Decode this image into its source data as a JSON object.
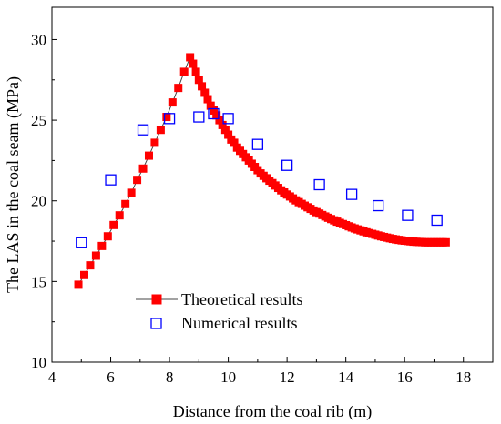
{
  "chart_data": {
    "type": "scatter",
    "title": "",
    "xlabel": "Distance from the coal rib (m)",
    "ylabel": "The LAS in the coal seam (MPa)",
    "xlim": [
      4,
      19
    ],
    "ylim": [
      10,
      32
    ],
    "xticks": [
      4,
      6,
      8,
      10,
      12,
      14,
      16,
      18
    ],
    "yticks": [
      10,
      15,
      20,
      25,
      30
    ],
    "grid": false,
    "legend_position": "bottom-left",
    "series": [
      {
        "name": "Theoretical results",
        "kind": "line-with-square-markers",
        "color": "#ff0000",
        "line_color": "#444444",
        "x": [
          4.9,
          5.1,
          5.3,
          5.5,
          5.7,
          5.9,
          6.1,
          6.3,
          6.5,
          6.7,
          6.9,
          7.1,
          7.3,
          7.5,
          7.7,
          7.9,
          8.1,
          8.3,
          8.5,
          8.7,
          8.8,
          8.9,
          9.0,
          9.1,
          9.2,
          9.3,
          9.4,
          9.5,
          9.6,
          9.7,
          9.8,
          9.9,
          10.0,
          10.1,
          10.2,
          10.3,
          10.4,
          10.5,
          10.6,
          10.7,
          10.8,
          10.9,
          11.0,
          11.1,
          11.2,
          11.3,
          11.4,
          11.5,
          11.6,
          11.7,
          11.8,
          11.9,
          12.0,
          12.1,
          12.2,
          12.3,
          12.4,
          12.5,
          12.6,
          12.7,
          12.8,
          12.9,
          13.0,
          13.1,
          13.2,
          13.3,
          13.4,
          13.5,
          13.6,
          13.7,
          13.8,
          13.9,
          14.0,
          14.1,
          14.2,
          14.3,
          14.4,
          14.5,
          14.6,
          14.7,
          14.8,
          14.9,
          15.0,
          15.1,
          15.2,
          15.3,
          15.4,
          15.5,
          15.6,
          15.7,
          15.8,
          15.9,
          16.0,
          16.1,
          16.2,
          16.3,
          16.4,
          16.5,
          16.6,
          16.7,
          16.8,
          16.9,
          17.0,
          17.1,
          17.2,
          17.3,
          17.4
        ],
        "y": [
          14.8,
          15.4,
          16.0,
          16.6,
          17.2,
          17.8,
          18.5,
          19.1,
          19.8,
          20.5,
          21.3,
          22.0,
          22.8,
          23.6,
          24.4,
          25.2,
          26.1,
          27.0,
          28.0,
          28.9,
          28.5,
          28.0,
          27.5,
          27.1,
          26.7,
          26.3,
          25.9,
          25.6,
          25.3,
          25.0,
          24.7,
          24.4,
          24.1,
          23.8,
          23.6,
          23.3,
          23.1,
          22.9,
          22.7,
          22.5,
          22.3,
          22.1,
          21.9,
          21.7,
          21.55,
          21.4,
          21.25,
          21.1,
          20.95,
          20.8,
          20.65,
          20.52,
          20.39,
          20.27,
          20.15,
          20.03,
          19.92,
          19.81,
          19.7,
          19.6,
          19.5,
          19.4,
          19.3,
          19.21,
          19.12,
          19.03,
          18.95,
          18.87,
          18.79,
          18.71,
          18.63,
          18.56,
          18.49,
          18.42,
          18.35,
          18.29,
          18.23,
          18.17,
          18.11,
          18.05,
          18.0,
          17.95,
          17.9,
          17.85,
          17.8,
          17.76,
          17.72,
          17.68,
          17.64,
          17.61,
          17.58,
          17.55,
          17.53,
          17.51,
          17.49,
          17.47,
          17.46,
          17.45,
          17.44,
          17.43,
          17.43,
          17.43,
          17.43,
          17.43,
          17.43,
          17.43,
          17.43
        ]
      },
      {
        "name": "Numerical results",
        "kind": "hollow-square-markers",
        "color": "#0000ff",
        "x": [
          5.0,
          6.0,
          7.1,
          8.0,
          9.0,
          9.5,
          10.0,
          11.0,
          12.0,
          13.1,
          14.2,
          15.1,
          16.1,
          17.1
        ],
        "y": [
          17.4,
          21.3,
          24.4,
          25.1,
          25.2,
          25.4,
          25.1,
          23.5,
          22.2,
          21.0,
          20.4,
          19.7,
          19.1,
          18.8
        ]
      }
    ]
  }
}
